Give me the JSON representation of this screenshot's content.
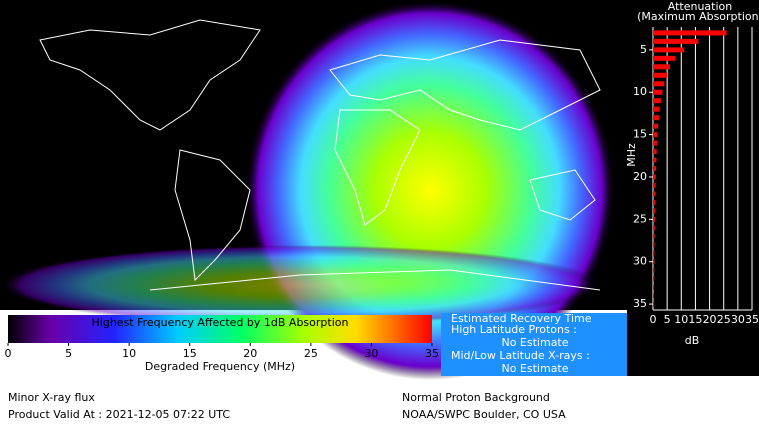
{
  "map": {
    "colorbar": {
      "title": "Highest Frequency Affected by 1dB Absorption",
      "label": "Degraded Frequency (MHz)",
      "lim": [
        0,
        35
      ],
      "ticks": [
        0,
        5,
        10,
        15,
        20,
        25,
        30,
        35
      ]
    }
  },
  "info": {
    "heading": "Estimated Recovery Time",
    "high_label": "High Latitude Protons :",
    "high_value": "No Estimate",
    "low_label": "Mid/Low Latitude X-rays :",
    "low_value": "No Estimate"
  },
  "footer": {
    "left1": "Minor X-ray flux",
    "left2": "Product Valid At : 2021-12-05 07:22 UTC",
    "right1": "Normal Proton Background",
    "right2": "NOAA/SWPC Boulder, CO USA"
  },
  "chart_data": {
    "type": "hbar",
    "title": "Attenuation",
    "subtitle": "(Maximum Absorption)",
    "x_label": "dB",
    "y_label": "MHz",
    "color": "#ff0000",
    "categories": [
      3,
      4,
      5,
      6,
      7,
      8,
      9,
      10,
      11,
      12,
      13,
      14,
      15,
      16,
      17,
      18,
      19,
      20,
      21,
      22,
      23,
      24,
      25,
      26,
      27,
      28,
      29,
      30,
      31,
      32,
      33,
      34,
      35
    ],
    "values": [
      26,
      16,
      11,
      8,
      6,
      5,
      4,
      3.3,
      2.8,
      2.4,
      2.1,
      1.8,
      1.6,
      1.4,
      1.3,
      1.2,
      1.1,
      1.0,
      0.9,
      0.85,
      0.8,
      0.75,
      0.7,
      0.65,
      0.6,
      0.55,
      0.5,
      0.5,
      0.45,
      0.45,
      0.4,
      0.4,
      0.4
    ],
    "xlim": [
      0,
      35
    ],
    "xticks": [
      0,
      5,
      10,
      15,
      20,
      25,
      30,
      35
    ],
    "ylim": [
      2.3,
      35.7
    ],
    "yticks": [
      5,
      10,
      15,
      20,
      25,
      30,
      35
    ],
    "grid": true
  }
}
